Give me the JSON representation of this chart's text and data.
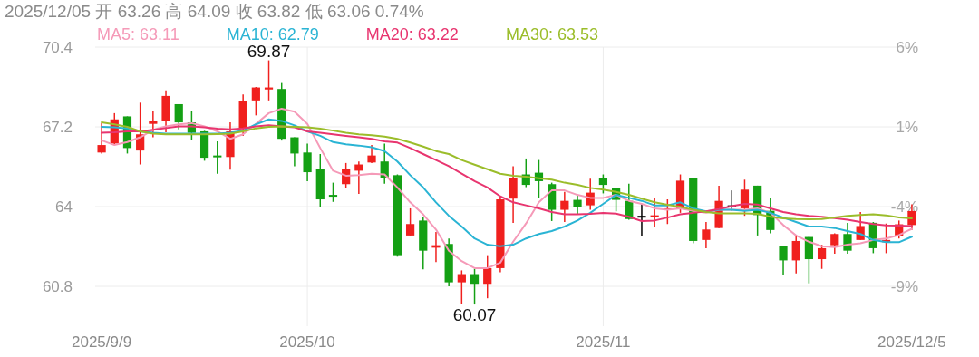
{
  "chart_data": {
    "type": "candlestick",
    "title": "2025/12/05 开 63.26 高 64.09 收 63.82 低 63.06 0.74%",
    "categories": [
      "2025/9/9",
      null,
      null,
      null,
      null,
      null,
      null,
      null,
      null,
      null,
      null,
      null,
      null,
      null,
      null,
      null,
      "2025/10",
      null,
      null,
      null,
      null,
      null,
      null,
      null,
      null,
      null,
      null,
      null,
      null,
      null,
      null,
      null,
      null,
      null,
      null,
      null,
      null,
      null,
      null,
      "2025/11",
      null,
      null,
      null,
      null,
      null,
      null,
      null,
      null,
      null,
      null,
      null,
      null,
      null,
      null,
      null,
      null,
      null,
      null,
      null,
      null,
      null,
      null,
      null,
      "2025/12/5"
    ],
    "ohlc": [
      [
        66.17,
        67.35,
        66.13,
        66.47
      ],
      [
        66.53,
        67.75,
        66.47,
        67.5
      ],
      [
        67.62,
        67.62,
        66.13,
        66.35
      ],
      [
        66.25,
        68.17,
        65.69,
        66.9
      ],
      [
        67.32,
        67.83,
        66.78,
        67.44
      ],
      [
        67.44,
        68.66,
        66.98,
        68.44
      ],
      [
        68.11,
        68.11,
        67.1,
        67.38
      ],
      [
        67.38,
        67.83,
        66.69,
        66.96
      ],
      [
        67.02,
        67.04,
        65.84,
        65.96
      ],
      [
        66.05,
        66.62,
        65.32,
        65.99
      ],
      [
        65.99,
        67.38,
        65.48,
        67.02
      ],
      [
        67.14,
        68.5,
        66.84,
        68.23
      ],
      [
        68.26,
        68.8,
        67.66,
        68.78
      ],
      [
        68.7,
        69.87,
        68.26,
        68.78
      ],
      [
        68.72,
        68.96,
        66.65,
        66.72
      ],
      [
        66.78,
        66.78,
        65.62,
        66.13
      ],
      [
        66.17,
        66.53,
        65.02,
        65.38
      ],
      [
        65.5,
        66.11,
        63.99,
        64.29
      ],
      [
        64.47,
        64.96,
        64.19,
        64.41
      ],
      [
        64.9,
        65.75,
        64.75,
        65.5
      ],
      [
        65.44,
        65.81,
        64.51,
        65.69
      ],
      [
        65.77,
        66.47,
        65.75,
        66.05
      ],
      [
        65.81,
        66.53,
        64.92,
        65.16
      ],
      [
        65.26,
        65.29,
        61.99,
        62.05
      ],
      [
        62.84,
        63.93,
        62.84,
        63.3
      ],
      [
        63.44,
        63.56,
        61.48,
        62.23
      ],
      [
        62.35,
        62.98,
        61.77,
        62.45
      ],
      [
        62.5,
        62.72,
        60.8,
        60.96
      ],
      [
        60.96,
        61.44,
        60.11,
        61.29
      ],
      [
        61.29,
        61.5,
        60.07,
        60.9
      ],
      [
        60.9,
        62.05,
        60.32,
        61.53
      ],
      [
        61.53,
        64.41,
        61.36,
        64.29
      ],
      [
        64.32,
        65.62,
        63.35,
        65.14
      ],
      [
        65.29,
        65.93,
        64.78,
        64.87
      ],
      [
        65.36,
        65.87,
        64.35,
        65.02
      ],
      [
        64.9,
        64.96,
        63.42,
        63.87
      ],
      [
        63.87,
        64.59,
        63.38,
        64.23
      ],
      [
        64.27,
        64.47,
        63.69,
        63.99
      ],
      [
        64.05,
        65.12,
        63.87,
        64.56
      ],
      [
        65.16,
        65.29,
        64.53,
        64.87
      ],
      [
        64.75,
        64.75,
        63.81,
        64.27
      ],
      [
        64.23,
        64.92,
        63.47,
        63.5
      ],
      [
        63.58,
        64.11,
        62.81,
        63.63
      ],
      [
        63.58,
        64.35,
        63.2,
        63.65
      ],
      [
        63.86,
        64.29,
        63.3,
        63.93
      ],
      [
        63.93,
        65.29,
        63.75,
        65.04
      ],
      [
        65.16,
        65.16,
        62.53,
        62.62
      ],
      [
        62.66,
        63.38,
        62.33,
        63.08
      ],
      [
        63.14,
        64.84,
        63.14,
        64.23
      ],
      [
        64.0,
        64.65,
        63.83,
        64.05
      ],
      [
        63.93,
        65.08,
        63.63,
        64.68
      ],
      [
        64.84,
        64.84,
        62.84,
        63.66
      ],
      [
        63.83,
        64.35,
        62.93,
        63.06
      ],
      [
        62.41,
        62.41,
        61.24,
        61.84
      ],
      [
        61.84,
        62.86,
        61.32,
        62.62
      ],
      [
        62.78,
        62.78,
        60.92,
        61.89
      ],
      [
        61.89,
        62.47,
        61.5,
        62.33
      ],
      [
        62.45,
        62.93,
        62.11,
        62.9
      ],
      [
        62.9,
        63.35,
        62.11,
        62.23
      ],
      [
        62.66,
        63.78,
        62.66,
        63.22
      ],
      [
        63.35,
        63.38,
        62.13,
        62.33
      ],
      [
        62.57,
        63.32,
        62.13,
        62.66
      ],
      [
        62.81,
        63.44,
        62.72,
        63.29
      ],
      [
        63.26,
        64.09,
        63.06,
        63.82
      ]
    ],
    "colors": [
      "#f0201e",
      "#f0201e",
      "#14a014",
      "#f0201e",
      "#f0201e",
      "#f0201e",
      "#14a014",
      "#14a014",
      "#14a014",
      "#14a014",
      "#f0201e",
      "#f0201e",
      "#f0201e",
      "#f0201e",
      "#14a014",
      "#14a014",
      "#14a014",
      "#14a014",
      "#14a014",
      "#f0201e",
      "#f0201e",
      "#f0201e",
      "#14a014",
      "#14a014",
      "#f0201e",
      "#14a014",
      "#f0201e",
      "#14a014",
      "#f0201e",
      "#14a014",
      "#f0201e",
      "#f0201e",
      "#f0201e",
      "#14a014",
      "#14a014",
      "#14a014",
      "#f0201e",
      "#14a014",
      "#f0201e",
      "#14a014",
      "#14a014",
      "#14a014",
      "#000000",
      "#f0201e",
      "#f0201e",
      "#f0201e",
      "#14a014",
      "#f0201e",
      "#f0201e",
      "#000000",
      "#f0201e",
      "#14a014",
      "#14a014",
      "#14a014",
      "#f0201e",
      "#14a014",
      "#f0201e",
      "#f0201e",
      "#14a014",
      "#f0201e",
      "#14a014",
      "#f0201e",
      "#f0201e",
      "#f0201e"
    ],
    "series": [
      {
        "name": "MA5: 63.11",
        "type": "line",
        "color": "#f59ab8",
        "values": [
          66.66,
          66.47,
          66.59,
          66.78,
          67.08,
          67.22,
          67.3,
          67.35,
          67.22,
          67.02,
          66.72,
          66.9,
          67.32,
          67.75,
          67.93,
          67.81,
          67.32,
          66.35,
          65.44,
          65.24,
          65.26,
          65.32,
          65.29,
          64.77,
          64.17,
          63.69,
          63.08,
          62.23,
          61.81,
          61.53,
          61.53,
          61.75,
          62.59,
          63.32,
          64.17,
          64.65,
          64.65,
          64.47,
          64.35,
          64.35,
          64.47,
          64.23,
          64.11,
          63.93,
          63.87,
          63.93,
          63.83,
          63.75,
          63.87,
          63.87,
          63.87,
          63.93,
          63.75,
          63.26,
          62.84,
          62.59,
          62.41,
          62.37,
          62.47,
          62.53,
          62.66,
          62.72,
          62.86,
          63.11
        ]
      },
      {
        "name": "MA10: 62.79",
        "type": "line",
        "color": "#2ab4d4",
        "values": [
          67.2,
          67.18,
          67.14,
          67.02,
          66.96,
          66.93,
          66.93,
          66.93,
          66.93,
          66.93,
          66.96,
          67.05,
          67.3,
          67.5,
          67.44,
          67.26,
          67.02,
          66.84,
          66.59,
          66.5,
          66.45,
          66.38,
          66.23,
          65.81,
          65.26,
          64.77,
          64.17,
          63.63,
          63.2,
          62.72,
          62.47,
          62.41,
          62.47,
          62.72,
          62.9,
          63.02,
          63.2,
          63.44,
          63.75,
          64.11,
          64.47,
          64.35,
          64.23,
          64.05,
          64.05,
          64.17,
          63.93,
          63.81,
          63.87,
          63.87,
          63.83,
          63.87,
          63.75,
          63.56,
          63.38,
          63.2,
          63.2,
          63.14,
          63.02,
          62.9,
          62.66,
          62.57,
          62.57,
          62.79
        ]
      },
      {
        "name": "MA20: 63.22",
        "type": "line",
        "color": "#e8356f",
        "values": [
          66.96,
          66.98,
          67.02,
          67.02,
          67.08,
          67.15,
          67.22,
          67.22,
          67.18,
          67.13,
          67.1,
          67.14,
          67.22,
          67.26,
          67.22,
          67.18,
          67.02,
          66.96,
          66.9,
          66.84,
          66.78,
          66.72,
          66.62,
          66.57,
          66.35,
          66.11,
          65.87,
          65.62,
          65.32,
          65.02,
          64.77,
          64.41,
          64.17,
          64.05,
          63.93,
          63.78,
          63.69,
          63.69,
          63.71,
          63.75,
          63.72,
          63.59,
          63.42,
          63.44,
          63.56,
          63.69,
          63.75,
          63.81,
          63.9,
          64.02,
          64.11,
          64.08,
          63.93,
          63.78,
          63.69,
          63.63,
          63.59,
          63.54,
          63.47,
          63.38,
          63.3,
          63.25,
          63.24,
          63.22
        ]
      },
      {
        "name": "MA30: 63.53",
        "type": "line",
        "color": "#9bbd2a",
        "values": [
          67.38,
          67.3,
          67.2,
          67.02,
          66.93,
          66.9,
          66.9,
          66.9,
          66.9,
          66.91,
          66.93,
          67.02,
          67.14,
          67.2,
          67.22,
          67.2,
          67.18,
          67.13,
          67.05,
          66.96,
          66.9,
          66.86,
          66.81,
          66.72,
          66.57,
          66.41,
          66.23,
          66.11,
          65.87,
          65.68,
          65.5,
          65.32,
          65.24,
          65.2,
          65.14,
          65.08,
          64.96,
          64.87,
          64.75,
          64.68,
          64.59,
          64.47,
          64.32,
          64.17,
          64.07,
          63.99,
          63.87,
          63.78,
          63.73,
          63.73,
          63.73,
          63.71,
          63.59,
          63.53,
          63.5,
          63.49,
          63.5,
          63.56,
          63.63,
          63.66,
          63.69,
          63.65,
          63.56,
          63.53
        ]
      }
    ],
    "ylim": [
      59.2,
      70.4
    ],
    "yticks": [
      70.4,
      67.2,
      64,
      60.8
    ],
    "y2lim": [
      -11.5,
      6
    ],
    "y2ticks": [
      {
        "value": 6,
        "label": "6%"
      },
      {
        "value": 1,
        "label": "1%"
      },
      {
        "value": -4,
        "label": "-4%"
      },
      {
        "value": -9,
        "label": "-9%"
      }
    ],
    "grid": true,
    "legend": "top",
    "annotations": [
      {
        "text": "69.87",
        "y": 69.87
      },
      {
        "text": "60.07",
        "y": 60.07
      }
    ]
  }
}
